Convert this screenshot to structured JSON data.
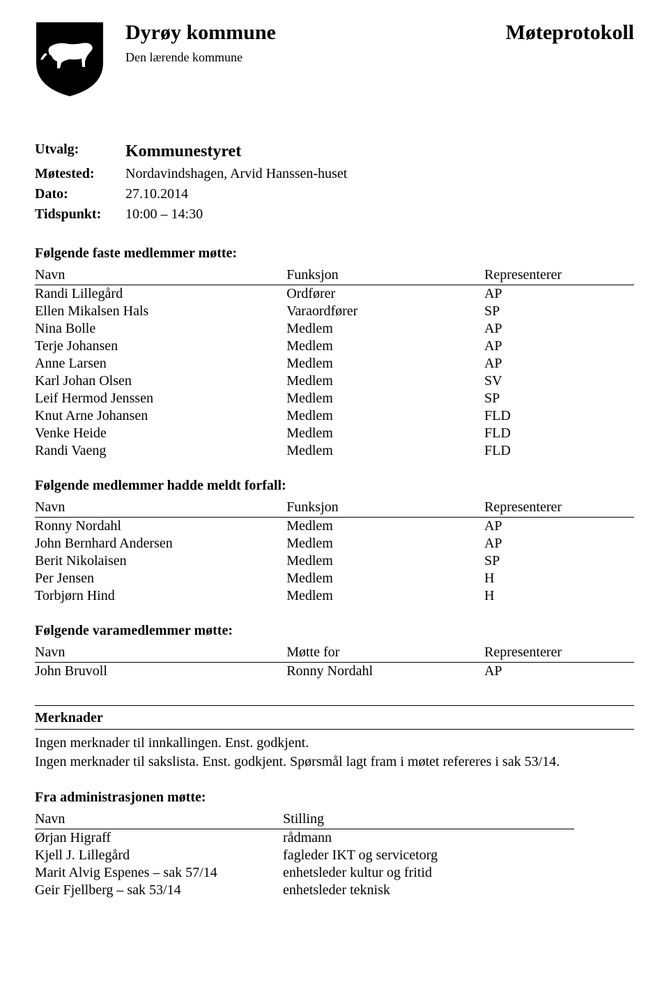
{
  "header": {
    "kommune": "Dyrøy kommune",
    "subtitle": "Den lærende kommune",
    "top_right": "Møteprotokoll"
  },
  "meta": {
    "utvalg_label": "Utvalg:",
    "utvalg_value": "Kommunestyret",
    "motested_label": "Møtested:",
    "motested_value": "Nordavindshagen, Arvid Hanssen-huset",
    "dato_label": "Dato:",
    "dato_value": "27.10.2014",
    "tidspunkt_label": "Tidspunkt:",
    "tidspunkt_value": "10:00 – 14:30"
  },
  "sections": {
    "faste": {
      "heading": "Følgende faste medlemmer møtte:",
      "columns": {
        "name": "Navn",
        "func": "Funksjon",
        "rep": "Representerer"
      },
      "rows": [
        {
          "name": "Randi Lillegård",
          "func": "Ordfører",
          "rep": "AP"
        },
        {
          "name": "Ellen Mikalsen Hals",
          "func": "Varaordfører",
          "rep": "SP"
        },
        {
          "name": "Nina Bolle",
          "func": "Medlem",
          "rep": "AP"
        },
        {
          "name": "Terje Johansen",
          "func": "Medlem",
          "rep": "AP"
        },
        {
          "name": "Anne Larsen",
          "func": "Medlem",
          "rep": "AP"
        },
        {
          "name": "Karl Johan Olsen",
          "func": "Medlem",
          "rep": "SV"
        },
        {
          "name": "Leif Hermod Jenssen",
          "func": "Medlem",
          "rep": "SP"
        },
        {
          "name": "Knut Arne Johansen",
          "func": "Medlem",
          "rep": "FLD"
        },
        {
          "name": "Venke Heide",
          "func": "Medlem",
          "rep": "FLD"
        },
        {
          "name": "Randi Vaeng",
          "func": "Medlem",
          "rep": "FLD"
        }
      ]
    },
    "forfall": {
      "heading": "Følgende medlemmer hadde meldt forfall:",
      "columns": {
        "name": "Navn",
        "func": "Funksjon",
        "rep": "Representerer"
      },
      "rows": [
        {
          "name": "Ronny Nordahl",
          "func": "Medlem",
          "rep": "AP"
        },
        {
          "name": "John Bernhard Andersen",
          "func": "Medlem",
          "rep": "AP"
        },
        {
          "name": "Berit Nikolaisen",
          "func": "Medlem",
          "rep": "SP"
        },
        {
          "name": "Per Jensen",
          "func": "Medlem",
          "rep": "H"
        },
        {
          "name": "Torbjørn Hind",
          "func": "Medlem",
          "rep": "H"
        }
      ]
    },
    "vara": {
      "heading": "Følgende varamedlemmer møtte:",
      "columns": {
        "name": "Navn",
        "func": "Møtte for",
        "rep": "Representerer"
      },
      "rows": [
        {
          "name": "John Bruvoll",
          "func": "Ronny Nordahl",
          "rep": "AP"
        }
      ]
    },
    "merknader": {
      "heading": "Merknader",
      "line1": "Ingen merknader til innkallingen. Enst. godkjent.",
      "line2": "Ingen merknader til sakslista. Enst. godkjent. Spørsmål lagt fram i møtet refereres i sak 53/14."
    },
    "admin": {
      "heading": "Fra administrasjonen møtte:",
      "columns": {
        "name": "Navn",
        "stilling": "Stilling"
      },
      "rows": [
        {
          "name": "Ørjan Higraff",
          "stilling": "rådmann"
        },
        {
          "name": "Kjell J. Lillegård",
          "stilling": "fagleder IKT og servicetorg"
        },
        {
          "name": "Marit Alvig Espenes – sak 57/14",
          "stilling": "enhetsleder kultur og fritid"
        },
        {
          "name": "Geir Fjellberg – sak 53/14",
          "stilling": "enhetsleder teknisk"
        }
      ]
    }
  }
}
